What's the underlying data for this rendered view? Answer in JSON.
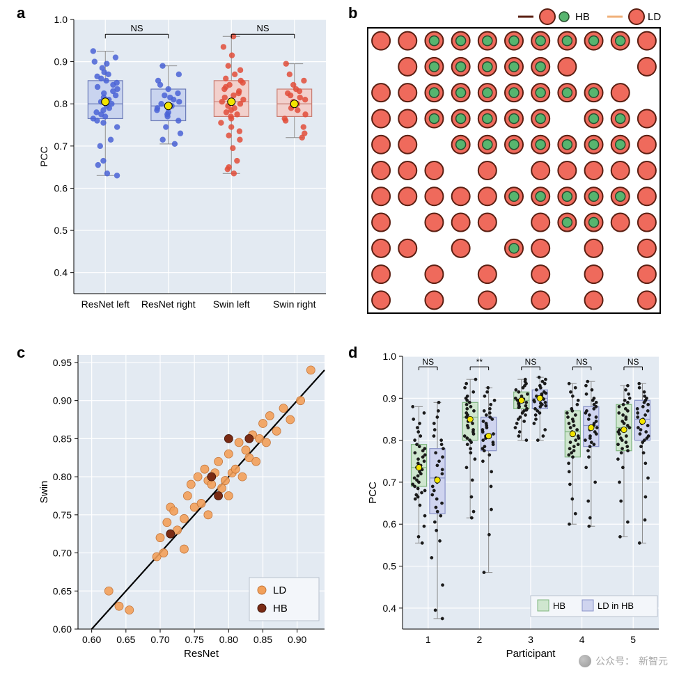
{
  "labels": {
    "a": "a",
    "b": "b",
    "c": "c",
    "d": "d"
  },
  "panel_a": {
    "type": "boxplot+strip",
    "background_color": "#e3eaf2",
    "grid_color": "#ffffff",
    "axis_color": "#000000",
    "ylabel": "PCC",
    "ylim": [
      0.35,
      1.0
    ],
    "yticks": [
      0.4,
      0.5,
      0.6,
      0.7,
      0.8,
      0.9,
      1.0
    ],
    "categories": [
      "ResNet left",
      "ResNet right",
      "Swin left",
      "Swin right"
    ],
    "box_fill": [
      "#c9d4ef",
      "#c9d4ef",
      "#f2d0cc",
      "#f2d0cc"
    ],
    "box_edge": [
      "#6b7bb8",
      "#6b7bb8",
      "#c97d72",
      "#c97d72"
    ],
    "whisker_color": "#8a8a8a",
    "point_color": [
      "#4a63d6",
      "#4a63d6",
      "#e24d3a",
      "#e24d3a"
    ],
    "mean_marker_color": "#f2e400",
    "mean_marker_edge": "#000000",
    "ns_label": "NS",
    "ns_pairs": [
      [
        0,
        1
      ],
      [
        2,
        3
      ]
    ],
    "boxes": [
      {
        "q1": 0.765,
        "q3": 0.855,
        "median": 0.8,
        "wlo": 0.63,
        "whi": 0.925,
        "mean": 0.805
      },
      {
        "q1": 0.76,
        "q3": 0.835,
        "median": 0.795,
        "wlo": 0.705,
        "whi": 0.89,
        "mean": 0.795
      },
      {
        "q1": 0.77,
        "q3": 0.855,
        "median": 0.805,
        "wlo": 0.635,
        "whi": 0.96,
        "mean": 0.805
      },
      {
        "q1": 0.77,
        "q3": 0.835,
        "median": 0.8,
        "wlo": 0.72,
        "whi": 0.895,
        "mean": 0.8
      }
    ],
    "points": [
      [
        0.925,
        0.91,
        0.9,
        0.895,
        0.885,
        0.875,
        0.87,
        0.865,
        0.86,
        0.855,
        0.85,
        0.845,
        0.84,
        0.835,
        0.83,
        0.825,
        0.82,
        0.815,
        0.81,
        0.805,
        0.8,
        0.795,
        0.79,
        0.785,
        0.78,
        0.775,
        0.77,
        0.765,
        0.76,
        0.755,
        0.745,
        0.715,
        0.7,
        0.665,
        0.655,
        0.635,
        0.63
      ],
      [
        0.89,
        0.87,
        0.855,
        0.845,
        0.835,
        0.825,
        0.82,
        0.815,
        0.81,
        0.805,
        0.8,
        0.795,
        0.79,
        0.785,
        0.78,
        0.775,
        0.77,
        0.76,
        0.745,
        0.73,
        0.715,
        0.705
      ],
      [
        0.96,
        0.935,
        0.915,
        0.89,
        0.88,
        0.87,
        0.86,
        0.855,
        0.85,
        0.845,
        0.84,
        0.835,
        0.83,
        0.825,
        0.82,
        0.815,
        0.81,
        0.805,
        0.8,
        0.795,
        0.79,
        0.785,
        0.78,
        0.775,
        0.77,
        0.765,
        0.755,
        0.745,
        0.735,
        0.725,
        0.715,
        0.695,
        0.665,
        0.65,
        0.645,
        0.635
      ],
      [
        0.895,
        0.87,
        0.855,
        0.845,
        0.835,
        0.83,
        0.825,
        0.82,
        0.815,
        0.81,
        0.805,
        0.8,
        0.795,
        0.79,
        0.785,
        0.775,
        0.765,
        0.76,
        0.745,
        0.73,
        0.72
      ]
    ],
    "label_fontsize": 14,
    "tick_fontsize": 14
  },
  "panel_b": {
    "type": "grid-of-circles",
    "border_color": "#000000",
    "background_color": "#ffffff",
    "legend": {
      "hb_label": "HB",
      "ld_label": "LD",
      "hb_circle_stroke": "#5a1f12",
      "hb_fill": "#ef6a5c",
      "hb_inner_fill": "#57b56f",
      "ld_line_color": "#f0b07a",
      "ld_fill": "#ef6a5c"
    },
    "circle_colors": {
      "big_fill": "#ef6a5c",
      "big_stroke": "#5a1f12",
      "small_fill": "#57b56f",
      "small_stroke": "#274d2d"
    },
    "rows": 11,
    "cols": 11,
    "big_r": 13,
    "small_r": 7,
    "grid": [
      "BBbbbbbbbbB",
      ".BbbbbbB..B",
      "BBbbbbbbbB.",
      "BBbbbbb.bbB",
      "BB.bbbbbbbB",
      "BBB.B.BBBBB",
      "BBBBBbbbbbB",
      "B.BBB.BbbBB",
      "BB.B.bB.B.B",
      "B.B.B.B.B.B",
      "B.B.B.B.B.B"
    ]
  },
  "panel_c": {
    "type": "scatter",
    "background_color": "#e3eaf2",
    "grid_color": "#ffffff",
    "xlabel": "ResNet",
    "ylabel": "Swin",
    "xlim": [
      0.58,
      0.94
    ],
    "ylim": [
      0.6,
      0.96
    ],
    "xticks": [
      0.6,
      0.65,
      0.7,
      0.75,
      0.8,
      0.85,
      0.9
    ],
    "yticks": [
      0.6,
      0.65,
      0.7,
      0.75,
      0.8,
      0.85,
      0.9,
      0.95
    ],
    "diag_color": "#000000",
    "ld_color": "#f2a05a",
    "ld_edge": "#c4763a",
    "hb_color": "#7a2b14",
    "hb_edge": "#3f1408",
    "legend": {
      "ld": "LD",
      "hb": "HB"
    },
    "ld_points": [
      [
        0.625,
        0.65
      ],
      [
        0.64,
        0.63
      ],
      [
        0.655,
        0.625
      ],
      [
        0.695,
        0.695
      ],
      [
        0.7,
        0.72
      ],
      [
        0.705,
        0.7
      ],
      [
        0.71,
        0.74
      ],
      [
        0.715,
        0.76
      ],
      [
        0.72,
        0.755
      ],
      [
        0.725,
        0.73
      ],
      [
        0.735,
        0.745
      ],
      [
        0.74,
        0.775
      ],
      [
        0.745,
        0.79
      ],
      [
        0.75,
        0.76
      ],
      [
        0.755,
        0.8
      ],
      [
        0.76,
        0.765
      ],
      [
        0.765,
        0.81
      ],
      [
        0.77,
        0.795
      ],
      [
        0.775,
        0.79
      ],
      [
        0.78,
        0.805
      ],
      [
        0.785,
        0.82
      ],
      [
        0.79,
        0.785
      ],
      [
        0.795,
        0.795
      ],
      [
        0.8,
        0.83
      ],
      [
        0.805,
        0.805
      ],
      [
        0.81,
        0.81
      ],
      [
        0.815,
        0.845
      ],
      [
        0.82,
        0.8
      ],
      [
        0.825,
        0.835
      ],
      [
        0.83,
        0.825
      ],
      [
        0.835,
        0.855
      ],
      [
        0.84,
        0.82
      ],
      [
        0.845,
        0.85
      ],
      [
        0.85,
        0.87
      ],
      [
        0.855,
        0.845
      ],
      [
        0.86,
        0.88
      ],
      [
        0.87,
        0.86
      ],
      [
        0.88,
        0.89
      ],
      [
        0.89,
        0.875
      ],
      [
        0.905,
        0.9
      ],
      [
        0.92,
        0.94
      ],
      [
        0.77,
        0.75
      ],
      [
        0.735,
        0.705
      ],
      [
        0.8,
        0.775
      ]
    ],
    "hb_points": [
      [
        0.715,
        0.725
      ],
      [
        0.775,
        0.8
      ],
      [
        0.785,
        0.775
      ],
      [
        0.8,
        0.85
      ],
      [
        0.83,
        0.85
      ]
    ],
    "label_fontsize": 15,
    "tick_fontsize": 14
  },
  "panel_d": {
    "type": "grouped-box+strip",
    "background_color": "#e3eaf2",
    "grid_color": "#ffffff",
    "ylabel": "PCC",
    "xlabel": "Participant",
    "ylim": [
      0.35,
      1.0
    ],
    "yticks": [
      0.4,
      0.5,
      0.6,
      0.7,
      0.8,
      0.9,
      1.0
    ],
    "participants": [
      "1",
      "2",
      "3",
      "4",
      "5"
    ],
    "group_labels": {
      "hb": "HB",
      "ld": "LD in HB"
    },
    "hb_fill": "#cfe6cf",
    "hb_edge": "#7fb57f",
    "ld_fill": "#cfd4ef",
    "ld_edge": "#8a93c9",
    "whisker_color": "#8a8a8a",
    "point_color": "#1b1b1b",
    "point_edge": "#000000",
    "mean_marker_color": "#f2e400",
    "mean_marker_edge": "#000000",
    "sig": [
      "NS",
      "**",
      "NS",
      "NS",
      "NS"
    ],
    "boxes": {
      "hb": [
        {
          "q1": 0.69,
          "q3": 0.79,
          "median": 0.735,
          "wlo": 0.555,
          "whi": 0.88,
          "mean": 0.735
        },
        {
          "q1": 0.8,
          "q3": 0.89,
          "median": 0.855,
          "wlo": 0.615,
          "whi": 0.945,
          "mean": 0.85
        },
        {
          "q1": 0.875,
          "q3": 0.915,
          "median": 0.895,
          "wlo": 0.8,
          "whi": 0.945,
          "mean": 0.895
        },
        {
          "q1": 0.76,
          "q3": 0.87,
          "median": 0.82,
          "wlo": 0.6,
          "whi": 0.935,
          "mean": 0.815
        },
        {
          "q1": 0.775,
          "q3": 0.885,
          "median": 0.83,
          "wlo": 0.57,
          "whi": 0.93,
          "mean": 0.825
        }
      ],
      "ld": [
        {
          "q1": 0.625,
          "q3": 0.78,
          "median": 0.71,
          "wlo": 0.375,
          "whi": 0.89,
          "mean": 0.705
        },
        {
          "q1": 0.775,
          "q3": 0.855,
          "median": 0.815,
          "wlo": 0.485,
          "whi": 0.925,
          "mean": 0.81
        },
        {
          "q1": 0.875,
          "q3": 0.92,
          "median": 0.9,
          "wlo": 0.8,
          "whi": 0.95,
          "mean": 0.9
        },
        {
          "q1": 0.785,
          "q3": 0.88,
          "median": 0.835,
          "wlo": 0.595,
          "whi": 0.94,
          "mean": 0.83
        },
        {
          "q1": 0.8,
          "q3": 0.895,
          "median": 0.85,
          "wlo": 0.555,
          "whi": 0.935,
          "mean": 0.845
        }
      ]
    },
    "points": {
      "hb": [
        [
          0.88,
          0.865,
          0.85,
          0.84,
          0.83,
          0.82,
          0.81,
          0.8,
          0.79,
          0.785,
          0.78,
          0.775,
          0.77,
          0.765,
          0.76,
          0.755,
          0.75,
          0.745,
          0.74,
          0.735,
          0.73,
          0.725,
          0.72,
          0.715,
          0.71,
          0.705,
          0.7,
          0.695,
          0.69,
          0.685,
          0.68,
          0.675,
          0.67,
          0.665,
          0.66,
          0.645,
          0.62,
          0.595,
          0.57,
          0.555
        ],
        [
          0.945,
          0.935,
          0.925,
          0.915,
          0.905,
          0.9,
          0.895,
          0.89,
          0.885,
          0.88,
          0.875,
          0.87,
          0.865,
          0.86,
          0.855,
          0.85,
          0.845,
          0.84,
          0.835,
          0.83,
          0.825,
          0.82,
          0.815,
          0.81,
          0.805,
          0.8,
          0.795,
          0.79,
          0.78,
          0.77,
          0.755,
          0.735,
          0.705,
          0.665,
          0.63,
          0.615
        ],
        [
          0.945,
          0.94,
          0.935,
          0.93,
          0.925,
          0.92,
          0.915,
          0.91,
          0.905,
          0.9,
          0.898,
          0.895,
          0.892,
          0.89,
          0.888,
          0.885,
          0.882,
          0.88,
          0.878,
          0.875,
          0.872,
          0.87,
          0.865,
          0.86,
          0.855,
          0.85,
          0.845,
          0.84,
          0.83,
          0.82,
          0.81,
          0.8
        ],
        [
          0.935,
          0.925,
          0.915,
          0.905,
          0.895,
          0.885,
          0.875,
          0.87,
          0.865,
          0.86,
          0.855,
          0.85,
          0.845,
          0.84,
          0.835,
          0.83,
          0.825,
          0.82,
          0.815,
          0.81,
          0.805,
          0.8,
          0.795,
          0.79,
          0.785,
          0.78,
          0.775,
          0.77,
          0.765,
          0.76,
          0.745,
          0.725,
          0.695,
          0.66,
          0.625,
          0.6
        ],
        [
          0.93,
          0.92,
          0.91,
          0.9,
          0.895,
          0.89,
          0.885,
          0.88,
          0.875,
          0.87,
          0.865,
          0.86,
          0.855,
          0.85,
          0.845,
          0.84,
          0.835,
          0.83,
          0.825,
          0.82,
          0.815,
          0.81,
          0.805,
          0.8,
          0.795,
          0.79,
          0.785,
          0.78,
          0.775,
          0.77,
          0.755,
          0.735,
          0.7,
          0.655,
          0.605,
          0.57
        ]
      ],
      "ld": [
        [
          0.89,
          0.87,
          0.855,
          0.84,
          0.825,
          0.81,
          0.8,
          0.79,
          0.78,
          0.77,
          0.76,
          0.75,
          0.74,
          0.73,
          0.72,
          0.71,
          0.7,
          0.69,
          0.68,
          0.67,
          0.66,
          0.65,
          0.64,
          0.63,
          0.62,
          0.605,
          0.585,
          0.56,
          0.52,
          0.455,
          0.395,
          0.375
        ],
        [
          0.925,
          0.915,
          0.905,
          0.895,
          0.885,
          0.875,
          0.87,
          0.865,
          0.86,
          0.855,
          0.85,
          0.845,
          0.84,
          0.835,
          0.83,
          0.825,
          0.82,
          0.815,
          0.81,
          0.805,
          0.8,
          0.795,
          0.79,
          0.785,
          0.78,
          0.775,
          0.765,
          0.75,
          0.725,
          0.69,
          0.635,
          0.575,
          0.485
        ],
        [
          0.95,
          0.945,
          0.94,
          0.935,
          0.93,
          0.925,
          0.92,
          0.915,
          0.912,
          0.91,
          0.908,
          0.905,
          0.902,
          0.9,
          0.898,
          0.895,
          0.892,
          0.89,
          0.888,
          0.885,
          0.882,
          0.88,
          0.875,
          0.87,
          0.865,
          0.86,
          0.85,
          0.84,
          0.825,
          0.81,
          0.8
        ],
        [
          0.94,
          0.93,
          0.92,
          0.91,
          0.9,
          0.895,
          0.89,
          0.885,
          0.88,
          0.875,
          0.87,
          0.865,
          0.86,
          0.855,
          0.85,
          0.845,
          0.84,
          0.835,
          0.83,
          0.825,
          0.82,
          0.815,
          0.81,
          0.805,
          0.8,
          0.795,
          0.79,
          0.785,
          0.775,
          0.76,
          0.735,
          0.7,
          0.655,
          0.615,
          0.595
        ],
        [
          0.935,
          0.925,
          0.915,
          0.905,
          0.9,
          0.895,
          0.89,
          0.885,
          0.88,
          0.875,
          0.87,
          0.865,
          0.86,
          0.855,
          0.85,
          0.845,
          0.84,
          0.835,
          0.83,
          0.825,
          0.82,
          0.815,
          0.81,
          0.805,
          0.8,
          0.795,
          0.785,
          0.77,
          0.745,
          0.71,
          0.665,
          0.61,
          0.555
        ]
      ]
    },
    "label_fontsize": 15,
    "tick_fontsize": 14
  },
  "watermark": {
    "prefix": "公众号：",
    "name": "新智元"
  }
}
